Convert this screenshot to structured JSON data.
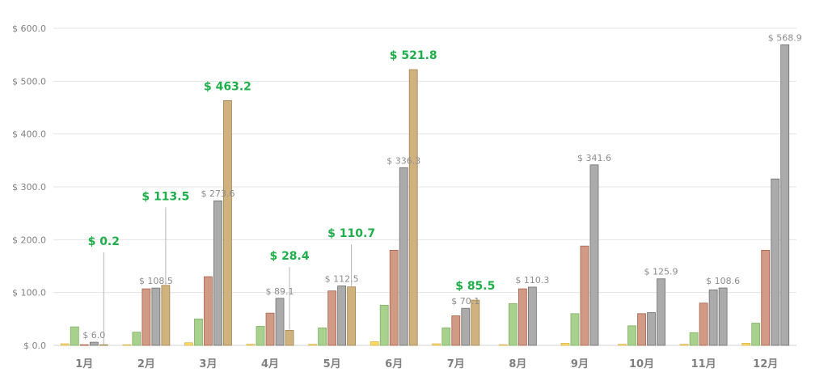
{
  "chart_data": {
    "type": "bar",
    "ylim": [
      0,
      600
    ],
    "yticks": [
      0,
      100,
      200,
      300,
      400,
      500,
      600
    ],
    "ytick_labels": [
      "$ 0.0",
      "$ 100.0",
      "$ 200.0",
      "$ 300.0",
      "$ 400.0",
      "$ 500.0",
      "$ 600.0"
    ],
    "grid": true,
    "legend": "none",
    "categories": [
      "1月",
      "2月",
      "3月",
      "4月",
      "5月",
      "6月",
      "7月",
      "8月",
      "9月",
      "10月",
      "11月",
      "12月"
    ],
    "series_colors": [
      {
        "fill": "#FFD966",
        "stroke": "#D6B656"
      },
      {
        "fill": "#A9D18E",
        "stroke": "#7FAF63"
      },
      {
        "fill": "#D09A84",
        "stroke": "#A9624C"
      },
      {
        "fill": "#ABABAB",
        "stroke": "#6F6F6F"
      },
      {
        "fill": "#CFB27E",
        "stroke": "#A2834E"
      }
    ],
    "series": [
      {
        "values": [
          3,
          0,
          5,
          2,
          2,
          7,
          3,
          1,
          4,
          2,
          2,
          4
        ]
      },
      {
        "values": [
          35,
          25,
          50,
          36,
          33,
          76,
          33,
          79,
          60,
          37,
          24,
          42
        ]
      },
      {
        "values": [
          0,
          107,
          130,
          61,
          103,
          180,
          56,
          107,
          188,
          60,
          80,
          180
        ]
      },
      {
        "values": [
          6.0,
          108.5,
          273.6,
          89.1,
          112.5,
          336.3,
          70.1,
          110.3,
          341.6,
          62,
          105,
          315
        ]
      },
      {
        "values": [
          0.2,
          113.5,
          463.2,
          28.4,
          110.7,
          521.8,
          85.5,
          null,
          null,
          125.9,
          108.6,
          568.9
        ]
      }
    ],
    "series_order": [
      [
        0,
        1,
        2,
        3,
        4
      ],
      [
        0,
        1,
        2,
        3,
        4
      ],
      [
        0,
        1,
        2,
        3,
        4
      ],
      [
        0,
        1,
        2,
        3,
        4
      ],
      [
        0,
        1,
        2,
        3,
        4
      ],
      [
        0,
        1,
        2,
        3,
        4
      ],
      [
        0,
        1,
        2,
        3,
        4
      ],
      [
        0,
        1,
        2,
        3
      ],
      [
        0,
        1,
        2,
        3
      ],
      [
        0,
        1,
        2,
        3,
        4
      ],
      [
        0,
        1,
        2,
        3,
        4
      ],
      [
        0,
        1,
        2,
        3,
        4
      ]
    ],
    "series_color_override": [
      null,
      null,
      null,
      null,
      null,
      null,
      null,
      null,
      null,
      [
        0,
        1,
        2,
        3,
        3
      ],
      [
        0,
        1,
        2,
        3,
        3
      ],
      [
        0,
        1,
        2,
        3,
        3
      ]
    ],
    "value_labels": [
      {
        "cat": 0,
        "series": 3,
        "text": "$ 6.0",
        "style": "gray",
        "leader": false
      },
      {
        "cat": 0,
        "series": 4,
        "text": "$ 0.2",
        "style": "green",
        "label_y": 190,
        "leader": true
      },
      {
        "cat": 1,
        "series": 3,
        "text": "$ 108.5",
        "style": "gray",
        "leader": false
      },
      {
        "cat": 1,
        "series": 4,
        "text": "$ 113.5",
        "style": "green",
        "label_y": 275,
        "leader": true
      },
      {
        "cat": 2,
        "series": 3,
        "text": "$ 273.6",
        "style": "gray",
        "leader": false
      },
      {
        "cat": 2,
        "series": 4,
        "text": "$ 463.2",
        "style": "green",
        "leader": false
      },
      {
        "cat": 3,
        "series": 3,
        "text": "$ 89.1",
        "style": "gray",
        "leader": false
      },
      {
        "cat": 3,
        "series": 4,
        "text": "$ 28.4",
        "style": "green",
        "label_y": 162,
        "leader": true
      },
      {
        "cat": 4,
        "series": 3,
        "text": "$ 112.5",
        "style": "gray",
        "leader": false
      },
      {
        "cat": 4,
        "series": 4,
        "text": "$ 110.7",
        "style": "green",
        "label_y": 205,
        "leader": true
      },
      {
        "cat": 5,
        "series": 3,
        "text": "$ 336.3",
        "style": "gray",
        "leader": false
      },
      {
        "cat": 5,
        "series": 4,
        "text": "$ 521.8",
        "style": "green",
        "leader": false
      },
      {
        "cat": 6,
        "series": 3,
        "text": "$ 70.1",
        "style": "gray",
        "leader": false
      },
      {
        "cat": 6,
        "series": 4,
        "text": "$ 85.5",
        "style": "green",
        "leader": false
      },
      {
        "cat": 7,
        "series": 3,
        "text": "$ 110.3",
        "style": "gray",
        "leader": false
      },
      {
        "cat": 8,
        "series": 3,
        "text": "$ 341.6",
        "style": "gray",
        "leader": false
      },
      {
        "cat": 9,
        "series": 4,
        "text": "$ 125.9",
        "style": "gray",
        "leader": false
      },
      {
        "cat": 10,
        "series": 4,
        "text": "$ 108.6",
        "style": "gray",
        "leader": false
      },
      {
        "cat": 11,
        "series": 4,
        "text": "$ 568.9",
        "style": "gray",
        "leader": false
      }
    ],
    "label_colors": {
      "green": "#1FAF4A",
      "gray": "#8C8C8C"
    },
    "axis_text_color": "#808080",
    "grid_color": "#E3E3E3"
  }
}
